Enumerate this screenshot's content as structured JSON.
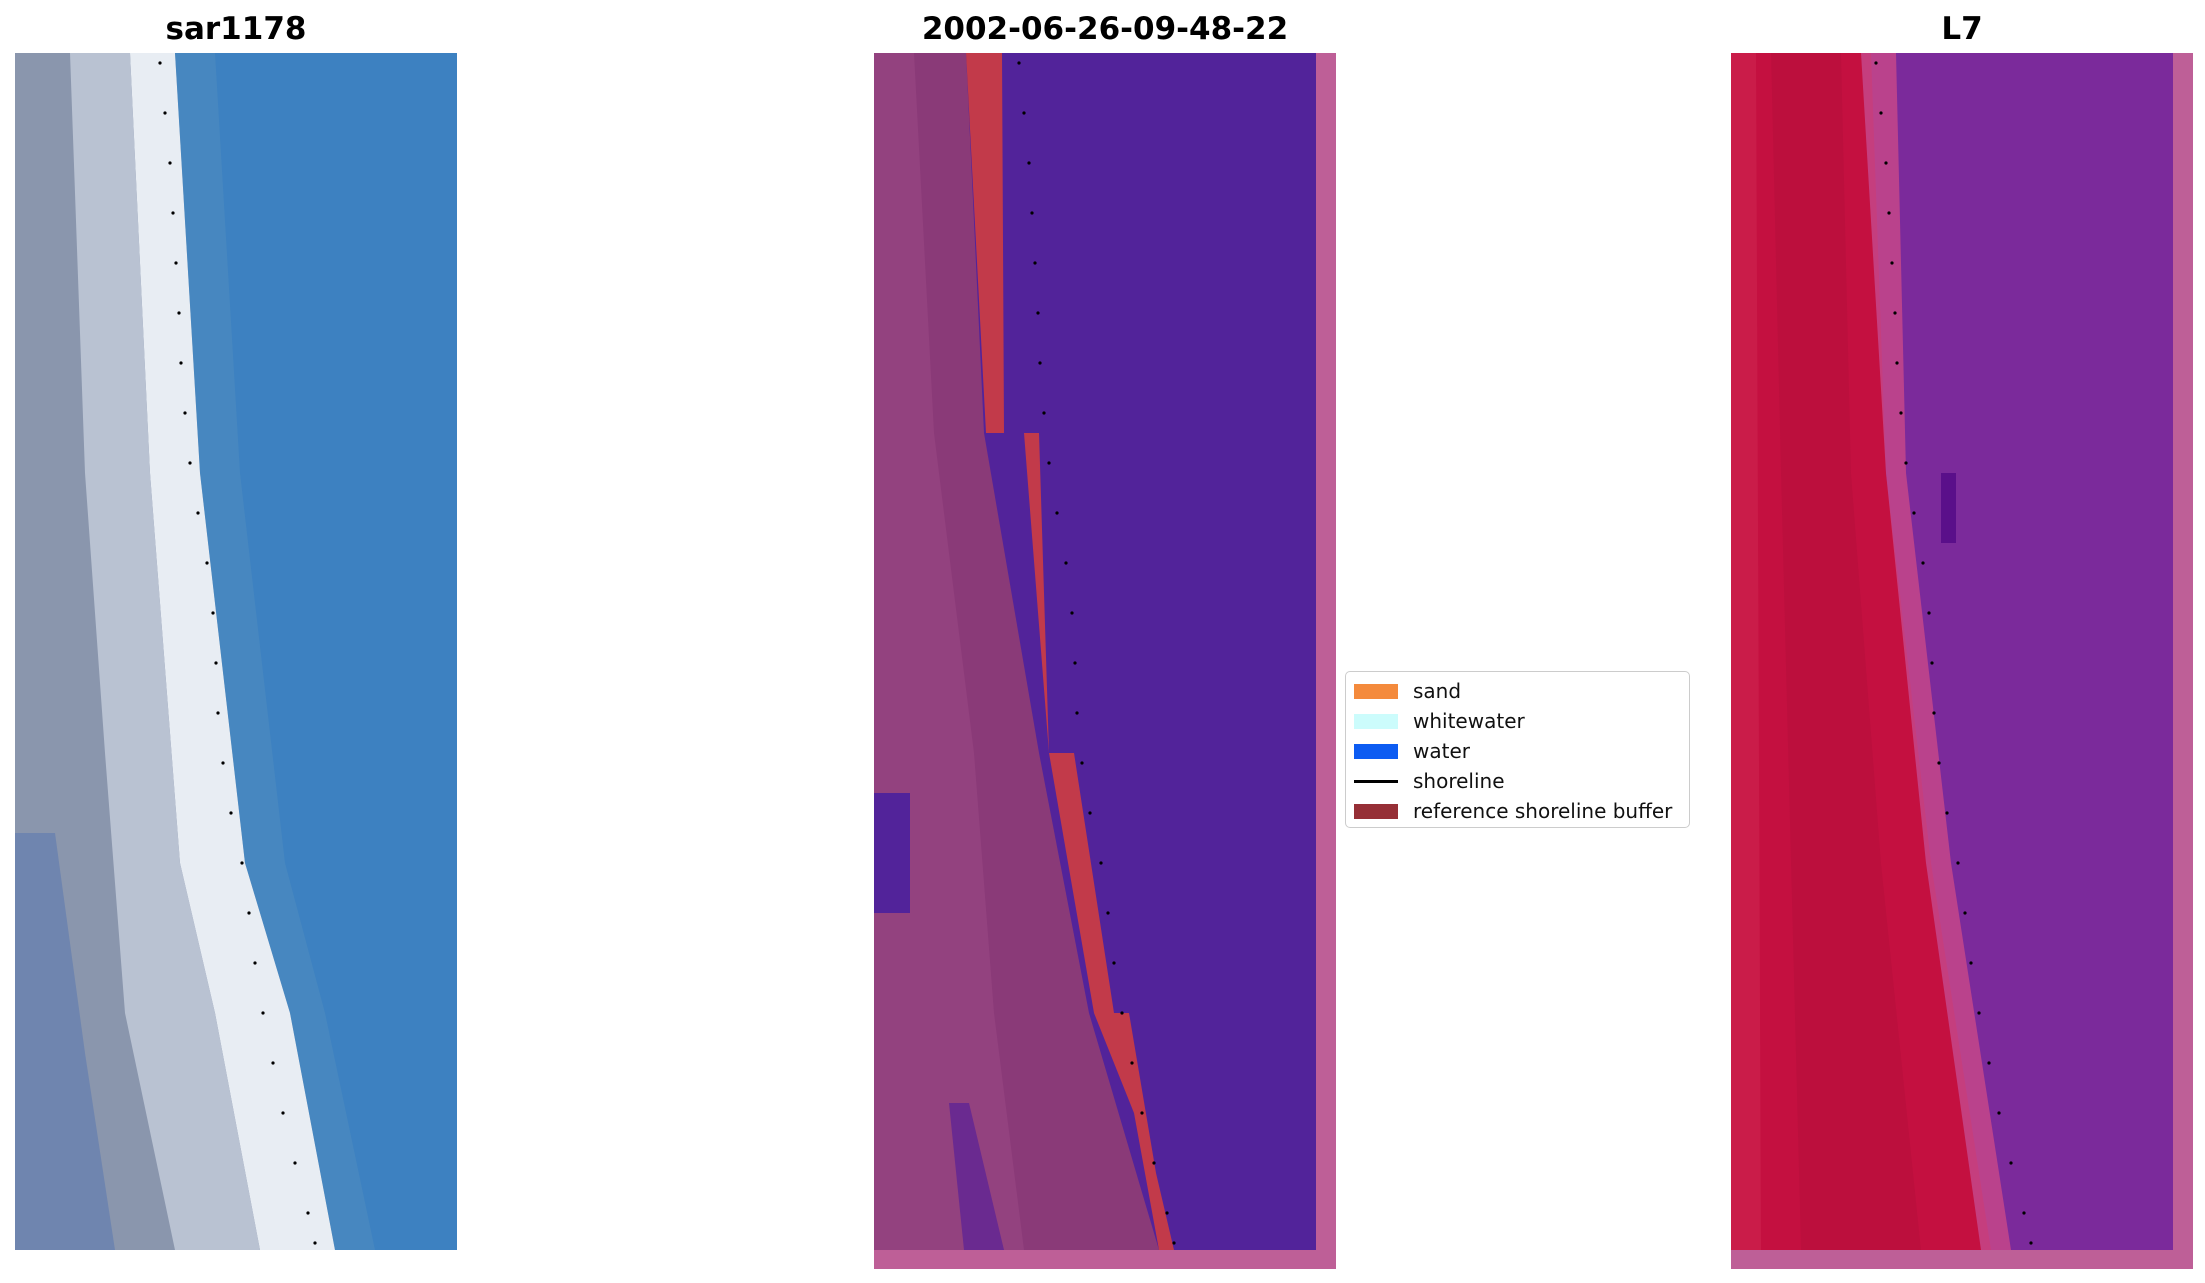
{
  "panels": {
    "left_title": "sar1178",
    "middle_title": "2002-06-26-09-48-22",
    "right_title": "L7"
  },
  "legend": {
    "items": [
      {
        "label": "sand",
        "color": "#f48a3c",
        "kind": "patch"
      },
      {
        "label": "whitewater",
        "color": "#ccfcfc",
        "kind": "patch"
      },
      {
        "label": "water",
        "color": "#0d5cf2",
        "kind": "patch"
      },
      {
        "label": "shoreline",
        "color": "#000000",
        "kind": "line"
      },
      {
        "label": "reference shoreline buffer",
        "color": "#962f36",
        "kind": "patch"
      }
    ]
  },
  "colors": {
    "rgb_water": "#3b7fbf",
    "rgb_sand": "#9aa6b8",
    "rgb_surf": "#eef2f6",
    "class_water": "#52239a",
    "class_buffer": "#c23a4a",
    "class_land": "#8a3a78",
    "class_border": "#be5f97",
    "l7_red": "#c41040",
    "l7_purple": "#7a2a9a",
    "shoreline": "#000000"
  }
}
